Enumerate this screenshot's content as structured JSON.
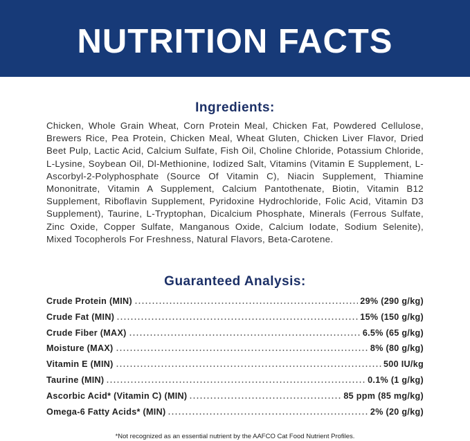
{
  "header": {
    "title": "NUTRITION FACTS"
  },
  "ingredients": {
    "heading": "Ingredients:",
    "text": "Chicken, Whole Grain Wheat, Corn Protein Meal, Chicken Fat, Powdered Cellulose, Brewers Rice, Pea Protein, Chicken Meal, Wheat Gluten, Chicken Liver Flavor, Dried Beet Pulp, Lactic Acid, Calcium Sulfate, Fish Oil, Choline Chloride, Potassium Chloride, L-Lysine, Soybean Oil, Dl-Methionine, Iodized Salt, Vitamins (Vitamin E Supplement, L-Ascorbyl-2-Polyphosphate (Source Of Vitamin C), Niacin Supplement, Thiamine Mononitrate, Vitamin A Supplement, Calcium Pantothenate, Biotin, Vitamin B12 Supplement, Riboflavin Supplement, Pyridoxine Hydrochloride, Folic Acid, Vitamin D3 Supplement), Taurine, L-Tryptophan, Dicalcium Phosphate, Minerals (Ferrous Sulfate, Zinc Oxide, Copper Sulfate, Manganous Oxide, Calcium Iodate, Sodium Selenite), Mixed Tocopherols For Freshness, Natural Flavors, Beta-Carotene."
  },
  "analysis": {
    "heading": "Guaranteed Analysis:",
    "rows": [
      {
        "label": "Crude Protein (MIN)",
        "value": "29% (290 g/kg)"
      },
      {
        "label": "Crude Fat (MIN)",
        "value": "15% (150 g/kg)"
      },
      {
        "label": "Crude Fiber (MAX)",
        "value": "6.5% (65 g/kg)"
      },
      {
        "label": "Moisture (MAX)",
        "value": "8% (80 g/kg)"
      },
      {
        "label": "Vitamin E (MIN)",
        "value": "500 IU/kg"
      },
      {
        "label": "Taurine (MIN)",
        "value": "0.1% (1 g/kg)"
      },
      {
        "label": "Ascorbic Acid* (Vitamin C) (MIN)",
        "value": "85 ppm (85 mg/kg)"
      },
      {
        "label": "Omega-6 Fatty Acids* (MIN)",
        "value": "2% (20 g/kg)"
      }
    ]
  },
  "footnote": "*Not recognized as an essential nutrient by the AAFCO Cat Food Nutrient Profiles."
}
